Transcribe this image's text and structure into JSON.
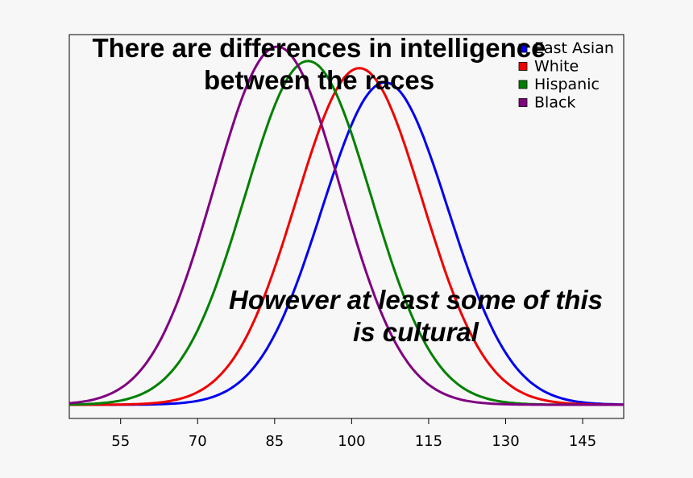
{
  "chart_data": {
    "type": "line",
    "title_lines": [
      "There are differences in intelligence",
      "between the races"
    ],
    "annotation_lines": [
      "However at least some of this",
      "is cultural"
    ],
    "xlabel": "",
    "ylabel": "",
    "xlim": [
      45,
      153
    ],
    "x_ticks": [
      55,
      70,
      85,
      100,
      115,
      130,
      145
    ],
    "y_ticks_shown": false,
    "grid": false,
    "legend_position": "top-right",
    "series": [
      {
        "name": "East Asian",
        "color": "#0000ee",
        "mean": 106.5,
        "sd": 12.3,
        "peak": 0.9
      },
      {
        "name": "White",
        "color": "#ee0000",
        "mean": 101.5,
        "sd": 12.3,
        "peak": 0.94
      },
      {
        "name": "Hispanic",
        "color": "#008000",
        "mean": 91.5,
        "sd": 12.3,
        "peak": 0.96
      },
      {
        "name": "Black",
        "color": "#800080",
        "mean": 85.5,
        "sd": 12.3,
        "peak": 1.0
      }
    ]
  }
}
